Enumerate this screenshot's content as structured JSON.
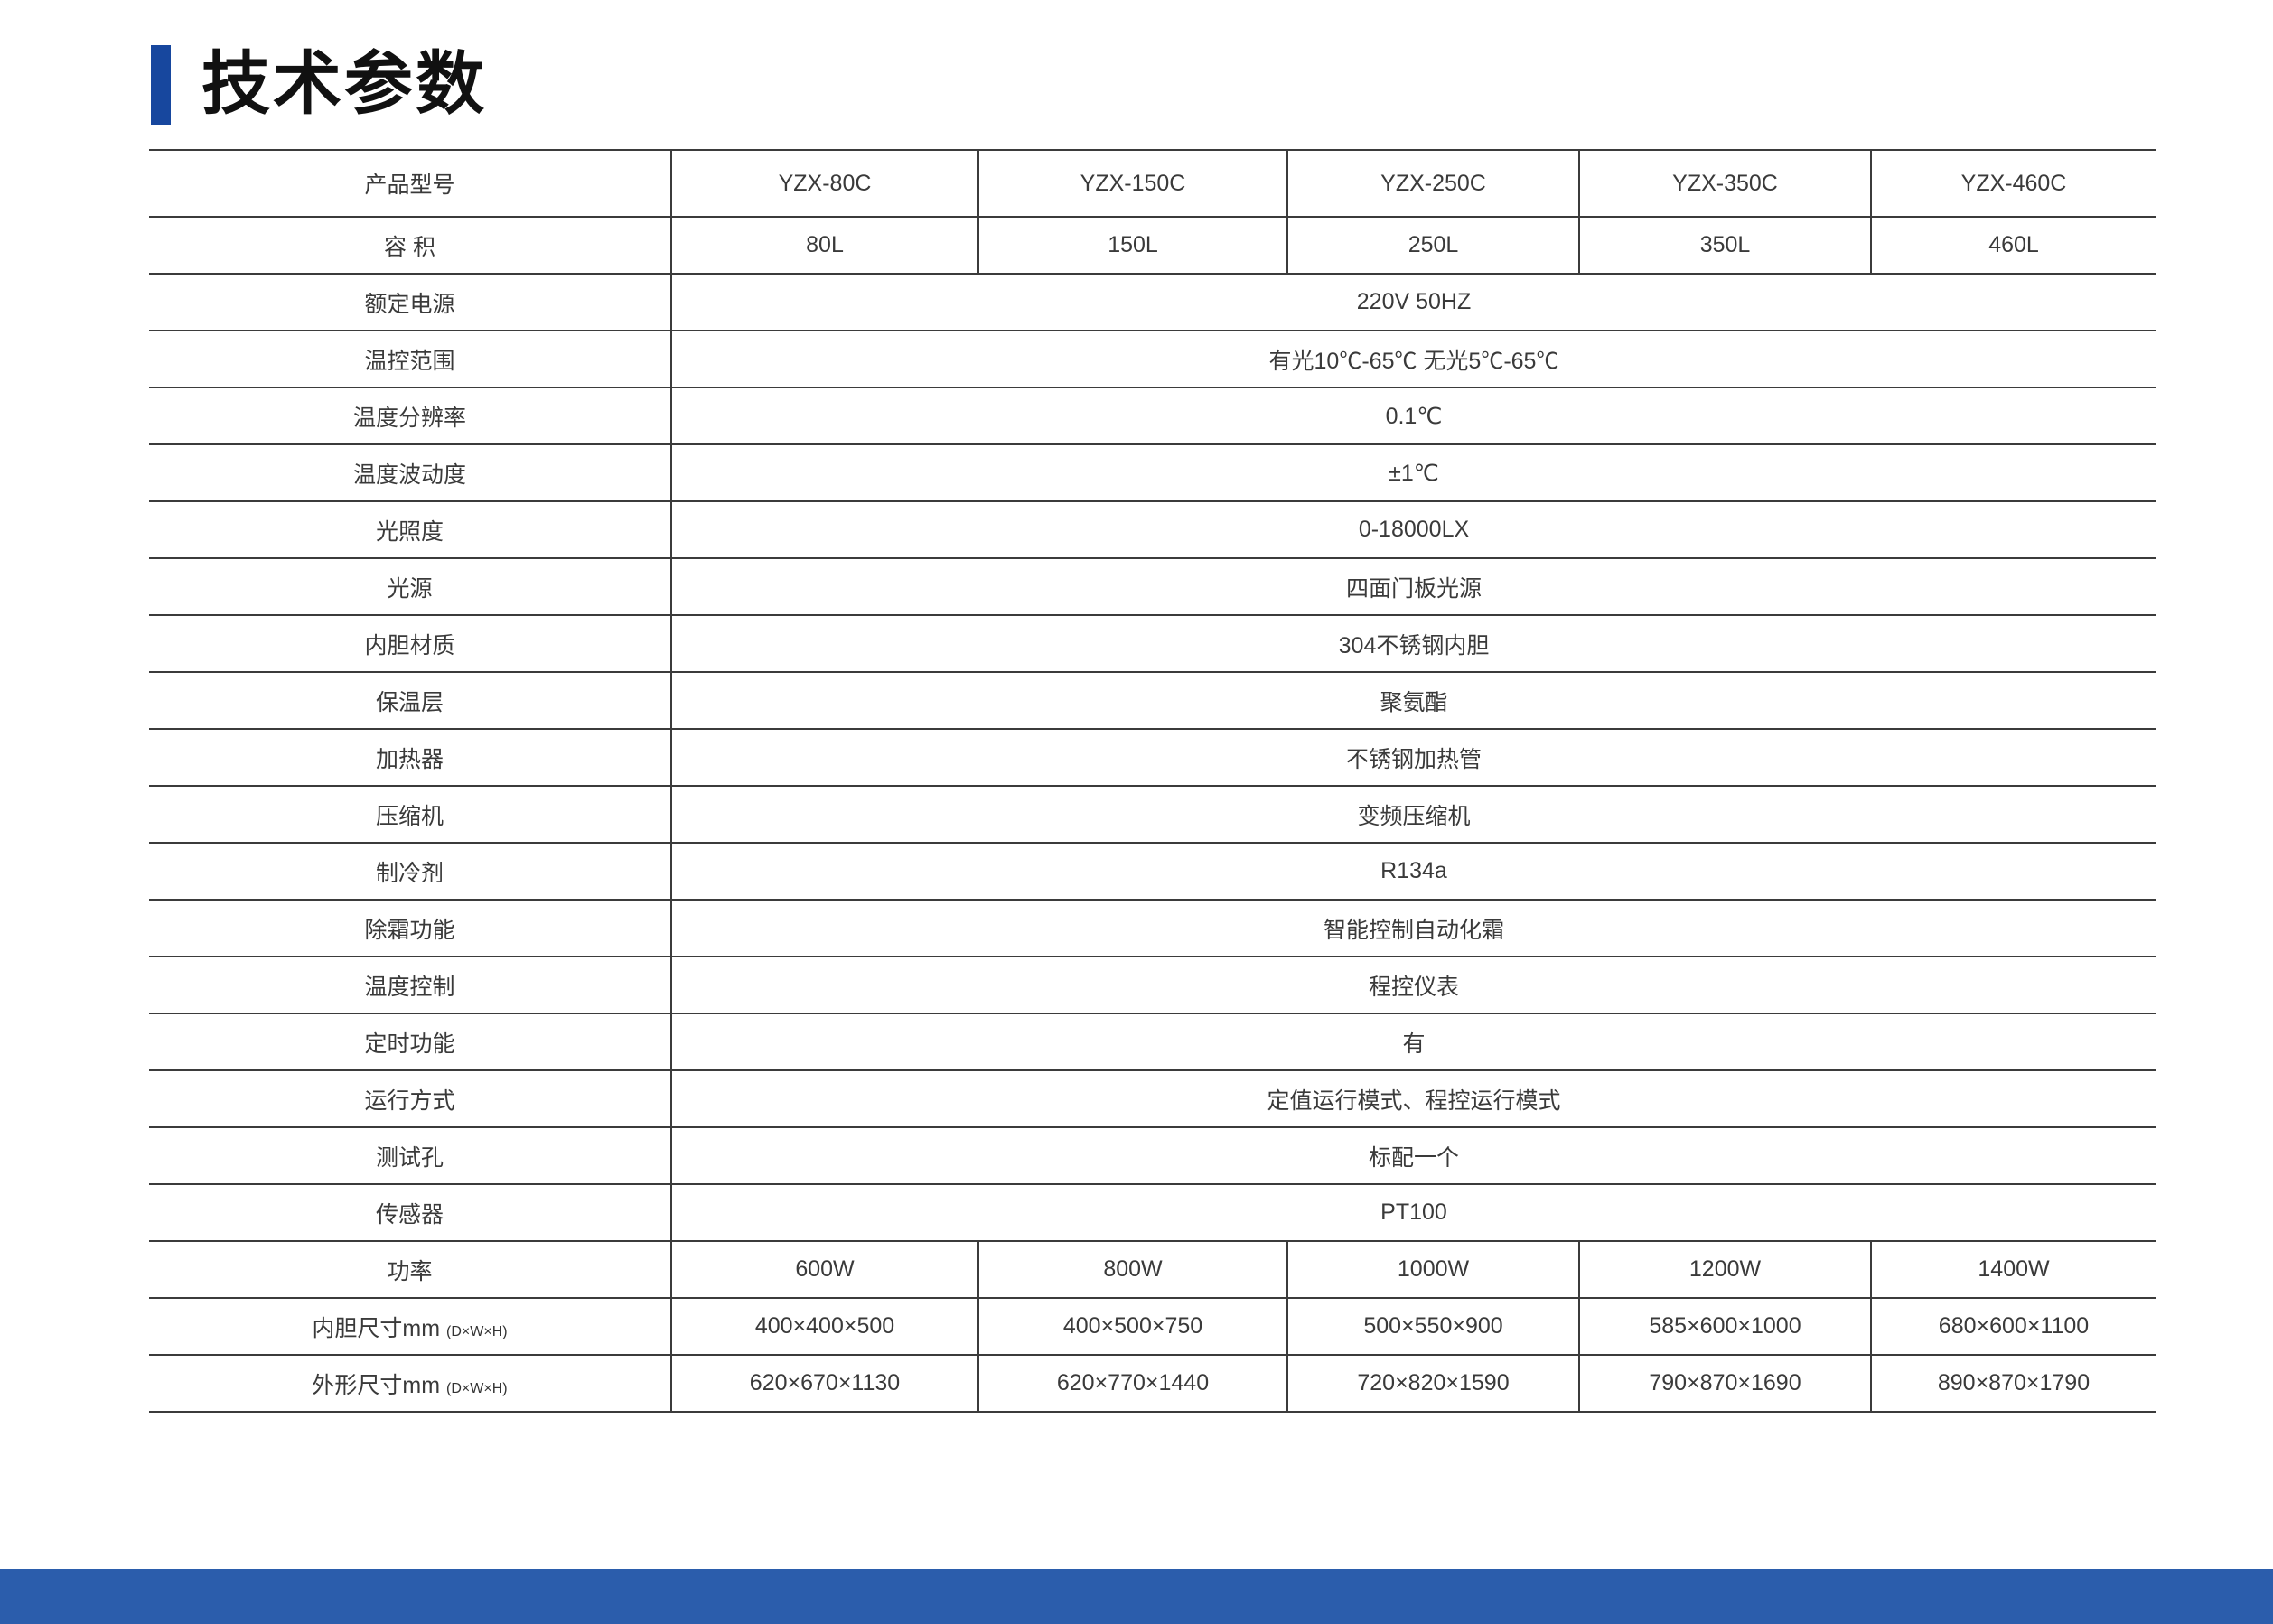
{
  "header": {
    "title": "技术参数"
  },
  "colors": {
    "accent_bar": "#17479e",
    "footer_bar": "#2b5dac",
    "table_line": "#3b3b3b",
    "text": "#3a3a3a"
  },
  "table": {
    "rows": [
      {
        "label": "产品型号",
        "values": [
          "YZX-80C",
          "YZX-150C",
          "YZX-250C",
          "YZX-350C",
          "YZX-460C"
        ]
      },
      {
        "label": "容 积",
        "values": [
          "80L",
          "150L",
          "250L",
          "350L",
          "460L"
        ]
      },
      {
        "label": "额定电源",
        "value": "220V 50HZ"
      },
      {
        "label": "温控范围",
        "value": "有光10℃-65℃ 无光5℃-65℃"
      },
      {
        "label": "温度分辨率",
        "value": "0.1℃"
      },
      {
        "label": "温度波动度",
        "value": "±1℃"
      },
      {
        "label": "光照度",
        "value": "0-18000LX"
      },
      {
        "label": "光源",
        "value": "四面门板光源"
      },
      {
        "label": "内胆材质",
        "value": "304不锈钢内胆"
      },
      {
        "label": "保温层",
        "value": "聚氨酯"
      },
      {
        "label": "加热器",
        "value": "不锈钢加热管"
      },
      {
        "label": "压缩机",
        "value": "变频压缩机"
      },
      {
        "label": "制冷剂",
        "value": "R134a"
      },
      {
        "label": "除霜功能",
        "value": "智能控制自动化霜"
      },
      {
        "label": "温度控制",
        "value": "程控仪表"
      },
      {
        "label": "定时功能",
        "value": "有"
      },
      {
        "label": "运行方式",
        "value": "定值运行模式、程控运行模式"
      },
      {
        "label": "测试孔",
        "value": "标配一个"
      },
      {
        "label": "传感器",
        "value": "PT100"
      },
      {
        "label": "功率",
        "values": [
          "600W",
          "800W",
          "1000W",
          "1200W",
          "1400W"
        ]
      },
      {
        "label": "内胆尺寸mm",
        "label_note": "(D×W×H)",
        "values": [
          "400×400×500",
          "400×500×750",
          "500×550×900",
          "585×600×1000",
          "680×600×1100"
        ]
      },
      {
        "label": "外形尺寸mm",
        "label_note": "(D×W×H)",
        "values": [
          "620×670×1130",
          "620×770×1440",
          "720×820×1590",
          "790×870×1690",
          "890×870×1790"
        ]
      }
    ]
  }
}
